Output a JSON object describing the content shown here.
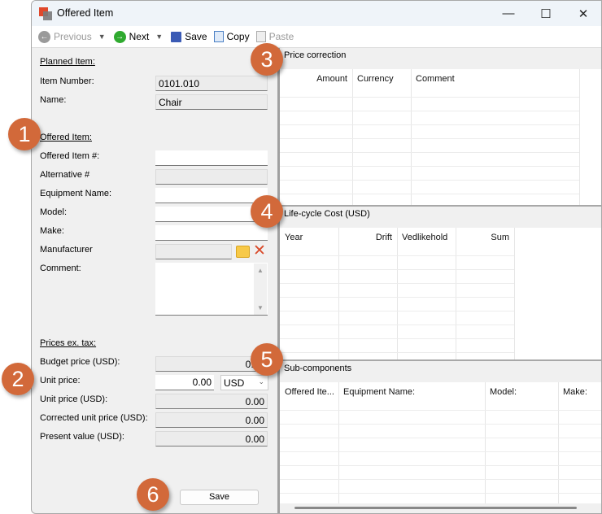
{
  "window": {
    "title": "Offered Item"
  },
  "toolbar": {
    "previous": "Previous",
    "next": "Next",
    "save": "Save",
    "copy": "Copy",
    "paste": "Paste"
  },
  "planned": {
    "heading": "Planned Item:",
    "item_number_label": "Item Number:",
    "item_number": "0101.010",
    "name_label": "Name:",
    "name": "Chair"
  },
  "offered": {
    "heading": "Offered Item:",
    "offered_no_label": "Offered Item #:",
    "offered_no": "",
    "alternative_label": "Alternative #",
    "alternative": "",
    "equipment_label": "Equipment Name:",
    "equipment": "",
    "model_label": "Model:",
    "model": "",
    "make_label": "Make:",
    "make": "",
    "manufacturer_label": "Manufacturer",
    "manufacturer": "",
    "comment_label": "Comment:",
    "comment": ""
  },
  "prices": {
    "heading": "Prices ex. tax:",
    "budget_label": "Budget price (USD):",
    "budget": "0.00",
    "unit_label": "Unit price:",
    "unit": "0.00",
    "currency": "USD",
    "unit_usd_label": "Unit price (USD):",
    "unit_usd": "0.00",
    "corrected_label": "Corrected unit price (USD):",
    "corrected": "0.00",
    "present_label": "Present value (USD):",
    "present": "0.00"
  },
  "save_button": "Save",
  "price_correction": {
    "title": "Price correction",
    "columns": [
      "Amount",
      "Currency",
      "Comment"
    ]
  },
  "lifecycle": {
    "title": "Life-cycle Cost (USD)",
    "columns": [
      "Year",
      "Drift",
      "Vedlikehold",
      "Sum"
    ]
  },
  "subcomponents": {
    "title": "Sub-components",
    "columns": [
      "Offered Ite...",
      "Equipment Name:",
      "Model:",
      "Make:"
    ]
  },
  "badges": [
    "1",
    "2",
    "3",
    "4",
    "5",
    "6"
  ],
  "colors": {
    "badge": "#d2693a"
  }
}
